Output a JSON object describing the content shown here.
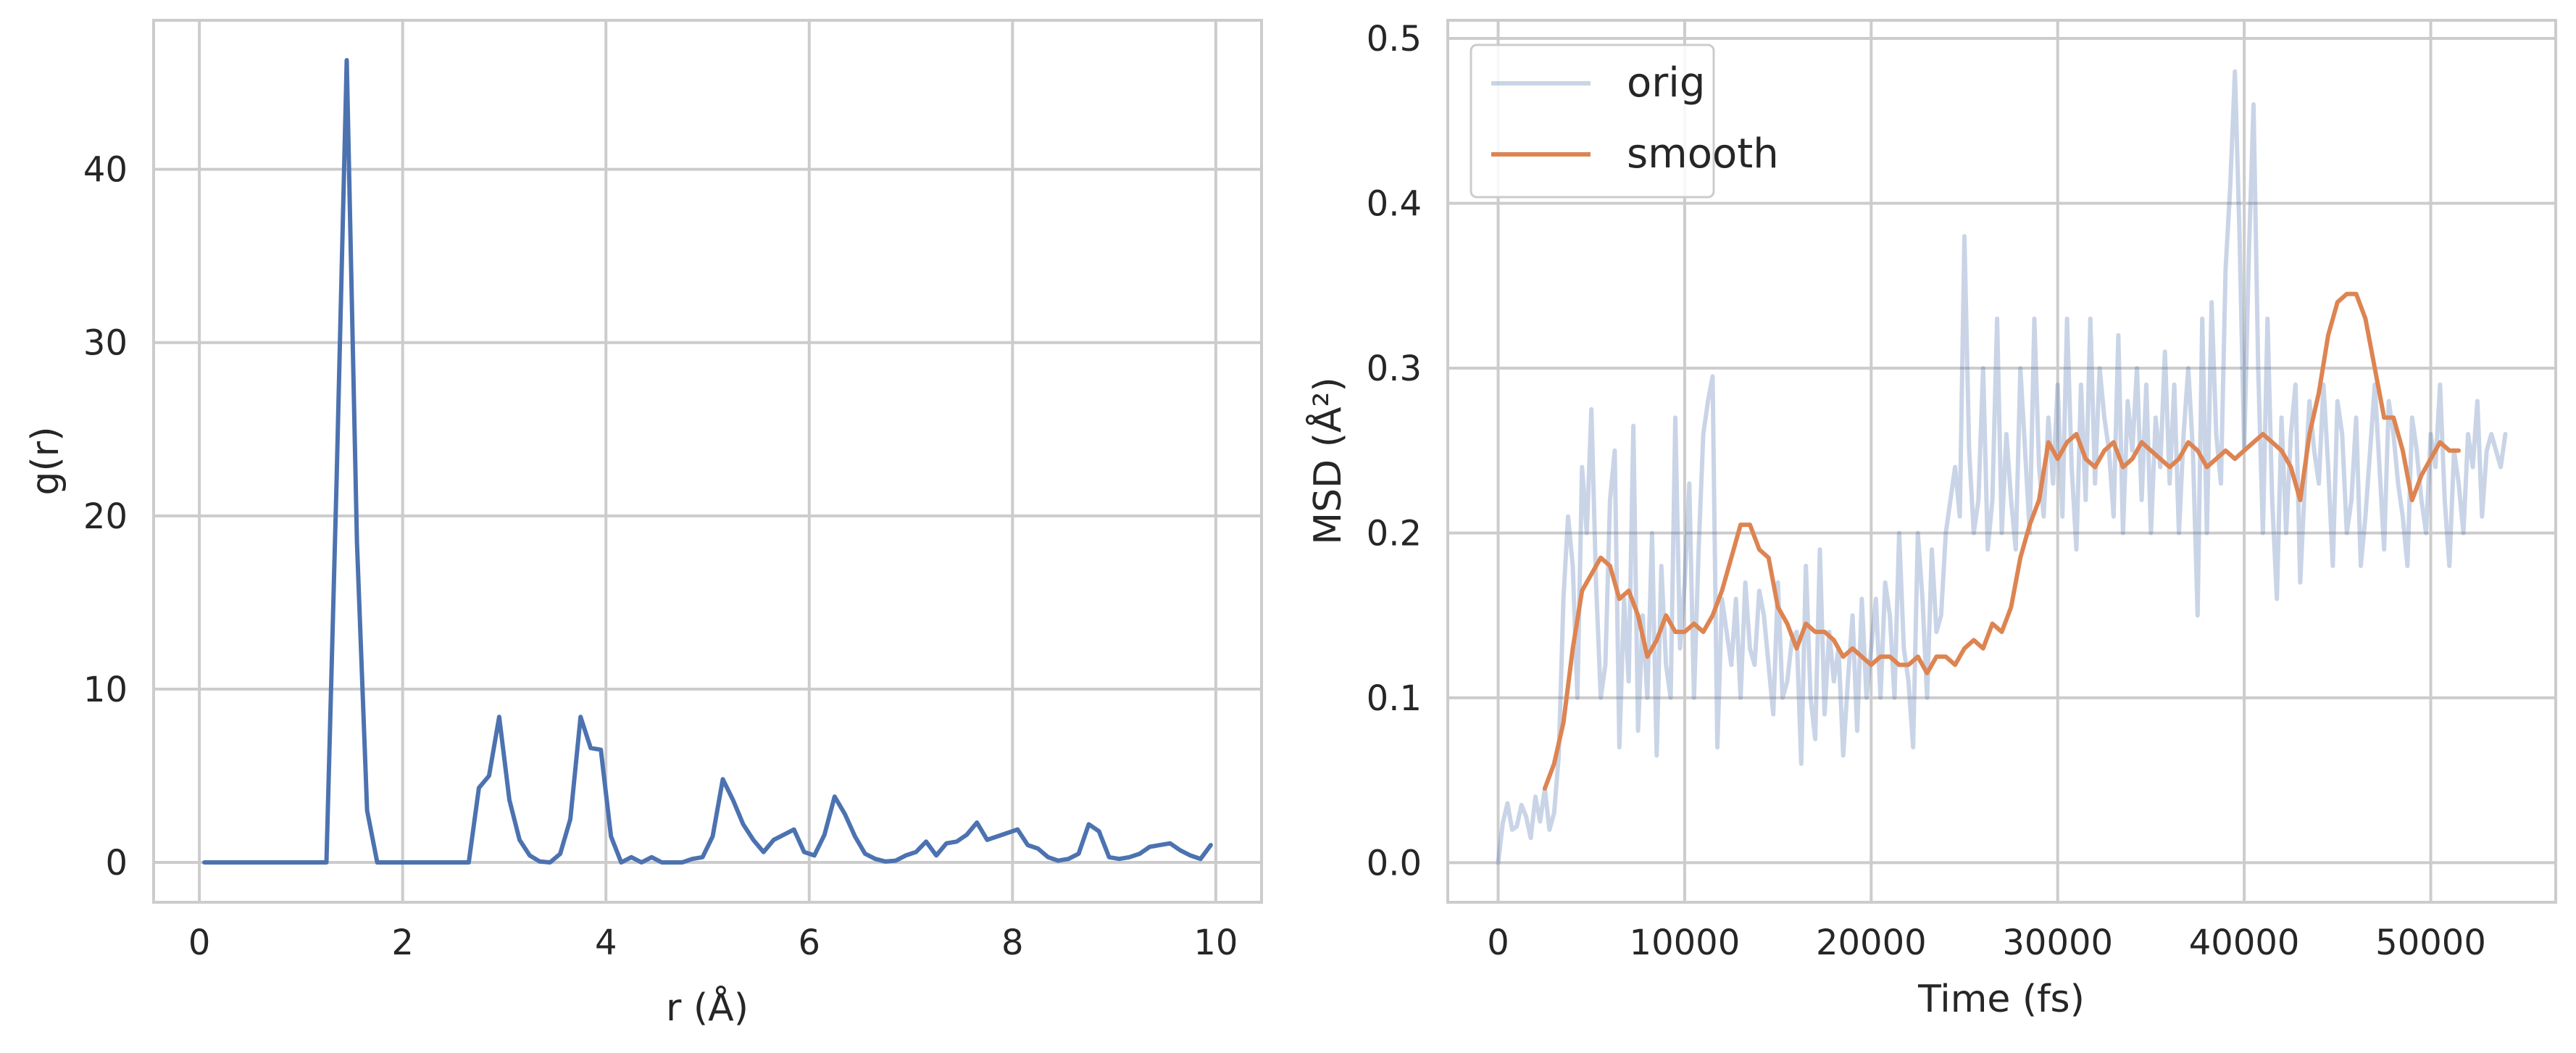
{
  "chart_data": [
    {
      "type": "line",
      "title": "",
      "xlabel": "r (Å)",
      "ylabel": "g(r)",
      "xlim": [
        -0.45,
        10.45
      ],
      "ylim": [
        -2.3,
        48.6
      ],
      "xticks": [
        0,
        2,
        4,
        6,
        8,
        10
      ],
      "xtick_labels": [
        "0",
        "2",
        "4",
        "6",
        "8",
        "10"
      ],
      "yticks": [
        0,
        10,
        20,
        30,
        40
      ],
      "ytick_labels": [
        "0",
        "10",
        "20",
        "30",
        "40"
      ],
      "grid": true,
      "series": [
        {
          "name": "",
          "color": "#4c72b0",
          "x": [
            0.05,
            0.15,
            0.25,
            0.35,
            0.45,
            0.55,
            0.65,
            0.75,
            0.85,
            0.95,
            1.05,
            1.15,
            1.25,
            1.35,
            1.45,
            1.55,
            1.65,
            1.75,
            1.85,
            1.95,
            2.05,
            2.15,
            2.25,
            2.35,
            2.45,
            2.55,
            2.65,
            2.75,
            2.85,
            2.95,
            3.05,
            3.15,
            3.25,
            3.35,
            3.45,
            3.55,
            3.65,
            3.75,
            3.85,
            3.95,
            4.05,
            4.15,
            4.25,
            4.35,
            4.45,
            4.55,
            4.65,
            4.75,
            4.85,
            4.95,
            5.05,
            5.15,
            5.25,
            5.35,
            5.45,
            5.55,
            5.65,
            5.75,
            5.85,
            5.95,
            6.05,
            6.15,
            6.25,
            6.35,
            6.45,
            6.55,
            6.65,
            6.75,
            6.85,
            6.95,
            7.05,
            7.15,
            7.25,
            7.35,
            7.45,
            7.55,
            7.65,
            7.75,
            7.85,
            7.95,
            8.05,
            8.15,
            8.25,
            8.35,
            8.45,
            8.55,
            8.65,
            8.75,
            8.85,
            8.95,
            9.05,
            9.15,
            9.25,
            9.35,
            9.45,
            9.55,
            9.65,
            9.75,
            9.85,
            9.95
          ],
          "values": [
            0,
            0,
            0,
            0,
            0,
            0,
            0,
            0,
            0,
            0,
            0,
            0,
            0,
            22,
            46.3,
            18.5,
            3,
            0,
            0,
            0,
            0,
            0,
            0,
            0,
            0,
            0,
            0,
            4.3,
            5,
            8.4,
            3.6,
            1.3,
            0.4,
            0.05,
            0,
            0.5,
            2.5,
            8.4,
            6.6,
            6.5,
            1.5,
            0,
            0.3,
            0,
            0.3,
            0,
            0,
            0,
            0.2,
            0.3,
            1.5,
            4.8,
            3.6,
            2.2,
            1.3,
            0.6,
            1.3,
            1.6,
            1.9,
            0.6,
            0.4,
            1.6,
            3.8,
            2.8,
            1.5,
            0.5,
            0.2,
            0.05,
            0.1,
            0.4,
            0.6,
            1.2,
            0.4,
            1.1,
            1.2,
            1.6,
            2.3,
            1.3,
            1.5,
            1.7,
            1.9,
            1,
            0.8,
            0.3,
            0.1,
            0.2,
            0.5,
            2.2,
            1.8,
            0.3,
            0.2,
            0.3,
            0.5,
            0.9,
            1,
            1.1,
            0.7,
            0.4,
            0.2,
            1
          ]
        }
      ]
    },
    {
      "type": "line",
      "title": "",
      "xlabel": "Time (fs)",
      "ylabel": "MSD (Å²)",
      "xlim": [
        -2700,
        56700
      ],
      "ylim": [
        -0.024,
        0.511
      ],
      "xticks": [
        0,
        10000,
        20000,
        30000,
        40000,
        50000
      ],
      "xtick_labels": [
        "0",
        "10000",
        "20000",
        "30000",
        "40000",
        "50000"
      ],
      "yticks": [
        0.0,
        0.1,
        0.2,
        0.3,
        0.4,
        0.5
      ],
      "ytick_labels": [
        "0.0",
        "0.1",
        "0.2",
        "0.3",
        "0.4",
        "0.5"
      ],
      "grid": true,
      "legend": {
        "position": "top-left"
      },
      "series": [
        {
          "name": "orig",
          "color": "#4c72b0",
          "opacity": 0.3,
          "x": [
            0,
            250,
            500,
            750,
            1000,
            1250,
            1500,
            1750,
            2000,
            2250,
            2500,
            2750,
            3000,
            3250,
            3500,
            3750,
            4000,
            4250,
            4500,
            4750,
            5000,
            5250,
            5500,
            5750,
            6000,
            6250,
            6500,
            6750,
            7000,
            7250,
            7500,
            7750,
            8000,
            8250,
            8500,
            8750,
            9000,
            9250,
            9500,
            9750,
            10000,
            10250,
            10500,
            10750,
            11000,
            11250,
            11500,
            11750,
            12000,
            12250,
            12500,
            12750,
            13000,
            13250,
            13500,
            13750,
            14000,
            14250,
            14500,
            14750,
            15000,
            15250,
            15500,
            15750,
            16000,
            16250,
            16500,
            16750,
            17000,
            17250,
            17500,
            17750,
            18000,
            18250,
            18500,
            18750,
            19000,
            19250,
            19500,
            19750,
            20000,
            20250,
            20500,
            20750,
            21000,
            21250,
            21500,
            21750,
            22000,
            22250,
            22500,
            22750,
            23000,
            23250,
            23500,
            23750,
            24000,
            24250,
            24500,
            24750,
            25000,
            25250,
            25500,
            25750,
            26000,
            26250,
            26500,
            26750,
            27000,
            27250,
            27500,
            27750,
            28000,
            28250,
            28500,
            28750,
            29000,
            29250,
            29500,
            29750,
            30000,
            30250,
            30500,
            30750,
            31000,
            31250,
            31500,
            31750,
            32000,
            32250,
            32500,
            32750,
            33000,
            33250,
            33500,
            33750,
            34000,
            34250,
            34500,
            34750,
            35000,
            35250,
            35500,
            35750,
            36000,
            36250,
            36500,
            36750,
            37000,
            37250,
            37500,
            37750,
            38000,
            38250,
            38500,
            38750,
            39000,
            39250,
            39500,
            39750,
            40000,
            40250,
            40500,
            40750,
            41000,
            41250,
            41500,
            41750,
            42000,
            42250,
            42500,
            42750,
            43000,
            43250,
            43500,
            43750,
            44000,
            44250,
            44500,
            44750,
            45000,
            45250,
            45500,
            45750,
            46000,
            46250,
            46500,
            46750,
            47000,
            47250,
            47500,
            47750,
            48000,
            48250,
            48500,
            48750,
            49000,
            49250,
            49500,
            49750,
            50000,
            50250,
            50500,
            50750,
            51000,
            51250,
            51500,
            51750,
            52000,
            52250,
            52500,
            52750,
            53000,
            53250,
            53500,
            53750,
            54000
          ],
          "values": [
            0,
            0.024,
            0.036,
            0.02,
            0.022,
            0.035,
            0.028,
            0.015,
            0.04,
            0.025,
            0.045,
            0.02,
            0.03,
            0.065,
            0.16,
            0.21,
            0.18,
            0.1,
            0.24,
            0.2,
            0.275,
            0.17,
            0.1,
            0.12,
            0.22,
            0.25,
            0.07,
            0.16,
            0.11,
            0.265,
            0.08,
            0.15,
            0.1,
            0.2,
            0.065,
            0.18,
            0.12,
            0.1,
            0.27,
            0.13,
            0.17,
            0.23,
            0.1,
            0.19,
            0.26,
            0.28,
            0.295,
            0.07,
            0.16,
            0.14,
            0.12,
            0.16,
            0.1,
            0.17,
            0.13,
            0.12,
            0.165,
            0.15,
            0.12,
            0.09,
            0.17,
            0.1,
            0.11,
            0.135,
            0.14,
            0.06,
            0.18,
            0.1,
            0.075,
            0.19,
            0.09,
            0.14,
            0.11,
            0.13,
            0.065,
            0.11,
            0.15,
            0.08,
            0.16,
            0.1,
            0.13,
            0.16,
            0.1,
            0.17,
            0.15,
            0.1,
            0.2,
            0.13,
            0.11,
            0.07,
            0.2,
            0.16,
            0.1,
            0.19,
            0.14,
            0.15,
            0.2,
            0.22,
            0.24,
            0.21,
            0.38,
            0.25,
            0.2,
            0.22,
            0.3,
            0.19,
            0.22,
            0.33,
            0.2,
            0.26,
            0.22,
            0.19,
            0.3,
            0.25,
            0.2,
            0.33,
            0.24,
            0.21,
            0.27,
            0.23,
            0.29,
            0.21,
            0.33,
            0.24,
            0.19,
            0.29,
            0.22,
            0.33,
            0.23,
            0.3,
            0.27,
            0.25,
            0.21,
            0.32,
            0.2,
            0.28,
            0.25,
            0.3,
            0.22,
            0.29,
            0.2,
            0.27,
            0.24,
            0.31,
            0.23,
            0.29,
            0.2,
            0.26,
            0.3,
            0.25,
            0.15,
            0.33,
            0.2,
            0.34,
            0.26,
            0.23,
            0.36,
            0.41,
            0.48,
            0.38,
            0.25,
            0.37,
            0.46,
            0.3,
            0.2,
            0.33,
            0.22,
            0.16,
            0.27,
            0.2,
            0.26,
            0.29,
            0.17,
            0.23,
            0.28,
            0.25,
            0.23,
            0.29,
            0.24,
            0.18,
            0.28,
            0.26,
            0.2,
            0.22,
            0.27,
            0.18,
            0.21,
            0.25,
            0.29,
            0.24,
            0.19,
            0.28,
            0.26,
            0.23,
            0.21,
            0.18,
            0.27,
            0.25,
            0.22,
            0.2,
            0.26,
            0.24,
            0.29,
            0.22,
            0.18,
            0.25,
            0.23,
            0.2,
            0.26,
            0.24,
            0.28,
            0.21,
            0.25,
            0.26,
            0.25,
            0.24,
            0.26
          ],
          "note": ""
        },
        {
          "name": "smooth",
          "color": "#dd8452",
          "x": [
            2500,
            3000,
            3500,
            4000,
            4500,
            5000,
            5500,
            6000,
            6500,
            7000,
            7500,
            8000,
            8500,
            9000,
            9500,
            10000,
            10500,
            11000,
            11500,
            12000,
            12500,
            13000,
            13500,
            14000,
            14500,
            15000,
            15500,
            16000,
            16500,
            17000,
            17500,
            18000,
            18500,
            19000,
            19500,
            20000,
            20500,
            21000,
            21500,
            22000,
            22500,
            23000,
            23500,
            24000,
            24500,
            25000,
            25500,
            26000,
            26500,
            27000,
            27500,
            28000,
            28500,
            29000,
            29500,
            30000,
            30500,
            31000,
            31500,
            32000,
            32500,
            33000,
            33500,
            34000,
            34500,
            35000,
            35500,
            36000,
            36500,
            37000,
            37500,
            38000,
            38500,
            39000,
            39500,
            40000,
            40500,
            41000,
            41500,
            42000,
            42500,
            43000,
            43500,
            44000,
            44500,
            45000,
            45500,
            46000,
            46500,
            47000,
            47500,
            48000,
            48500,
            49000,
            49500,
            50000,
            50500,
            51000,
            51500
          ],
          "values": [
            0.045,
            0.06,
            0.085,
            0.13,
            0.165,
            0.175,
            0.185,
            0.18,
            0.16,
            0.165,
            0.15,
            0.125,
            0.135,
            0.15,
            0.14,
            0.14,
            0.145,
            0.14,
            0.15,
            0.165,
            0.185,
            0.205,
            0.205,
            0.19,
            0.185,
            0.155,
            0.145,
            0.13,
            0.145,
            0.14,
            0.14,
            0.135,
            0.125,
            0.13,
            0.125,
            0.12,
            0.125,
            0.125,
            0.12,
            0.12,
            0.125,
            0.115,
            0.125,
            0.125,
            0.12,
            0.13,
            0.135,
            0.13,
            0.145,
            0.14,
            0.155,
            0.185,
            0.205,
            0.22,
            0.255,
            0.245,
            0.255,
            0.26,
            0.245,
            0.24,
            0.25,
            0.255,
            0.24,
            0.245,
            0.255,
            0.25,
            0.245,
            0.24,
            0.245,
            0.255,
            0.25,
            0.24,
            0.245,
            0.25,
            0.245,
            0.25,
            0.255,
            0.26,
            0.255,
            0.25,
            0.24,
            0.22,
            0.26,
            0.285,
            0.32,
            0.34,
            0.345,
            0.345,
            0.33,
            0.3,
            0.27,
            0.27,
            0.25,
            0.22,
            0.235,
            0.245,
            0.255,
            0.25,
            0.25
          ]
        }
      ]
    }
  ]
}
